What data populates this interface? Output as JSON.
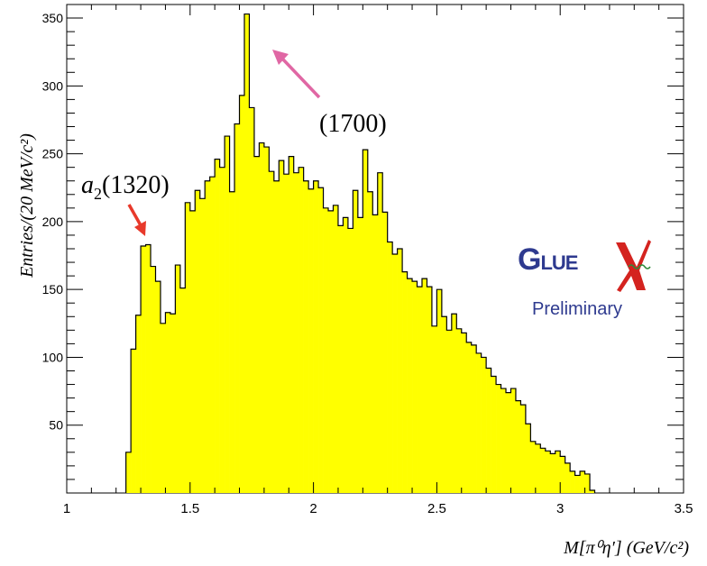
{
  "chart_data": {
    "type": "histogram",
    "title": "",
    "xlabel": "M[π⁰η′] (GeV/c²)",
    "ylabel": "Entries/(20 MeV/c²)",
    "xlim": [
      1,
      3.5
    ],
    "ylim": [
      0,
      360
    ],
    "x_ticks": [
      "1",
      "1.5",
      "2",
      "2.5",
      "3",
      "3.5"
    ],
    "y_ticks": [
      "50",
      "100",
      "150",
      "200",
      "250",
      "300",
      "350"
    ],
    "bin_width": 0.02,
    "x_start": 1.24,
    "values": [
      30,
      106,
      131,
      182,
      183,
      167,
      156,
      125,
      133,
      132,
      168,
      151,
      214,
      208,
      223,
      217,
      230,
      233,
      246,
      240,
      263,
      222,
      272,
      293,
      353,
      284,
      248,
      258,
      255,
      237,
      230,
      245,
      235,
      248,
      236,
      240,
      230,
      224,
      230,
      225,
      210,
      208,
      212,
      197,
      203,
      195,
      223,
      203,
      253,
      222,
      205,
      236,
      207,
      185,
      176,
      180,
      163,
      158,
      156,
      152,
      158,
      152,
      123,
      150,
      130,
      120,
      132,
      121,
      118,
      111,
      109,
      103,
      100,
      92,
      86,
      80,
      77,
      74,
      77,
      68,
      65,
      51,
      38,
      36,
      33,
      31,
      29,
      31,
      27,
      22,
      16,
      13,
      16,
      14,
      2
    ],
    "fill_color": "#ffff00",
    "edge_color": "#000000",
    "grid": false,
    "legend": "none",
    "annotations": [
      {
        "label_prefix": "a",
        "label_subscript": "2",
        "label_suffix": "(1320)",
        "color": "#000000",
        "arrow_color": "#e8392b"
      },
      {
        "label": "(1700)",
        "color": "#e067a4",
        "arrow_color": "#e067a4"
      }
    ]
  },
  "logo": {
    "text": "GLUEX",
    "subtext": "Preliminary",
    "colors": {
      "glue": "#2e3a8f",
      "x": "#d4231f",
      "wave": "#2f8a3a",
      "subtext": "#2e3a8f"
    }
  }
}
